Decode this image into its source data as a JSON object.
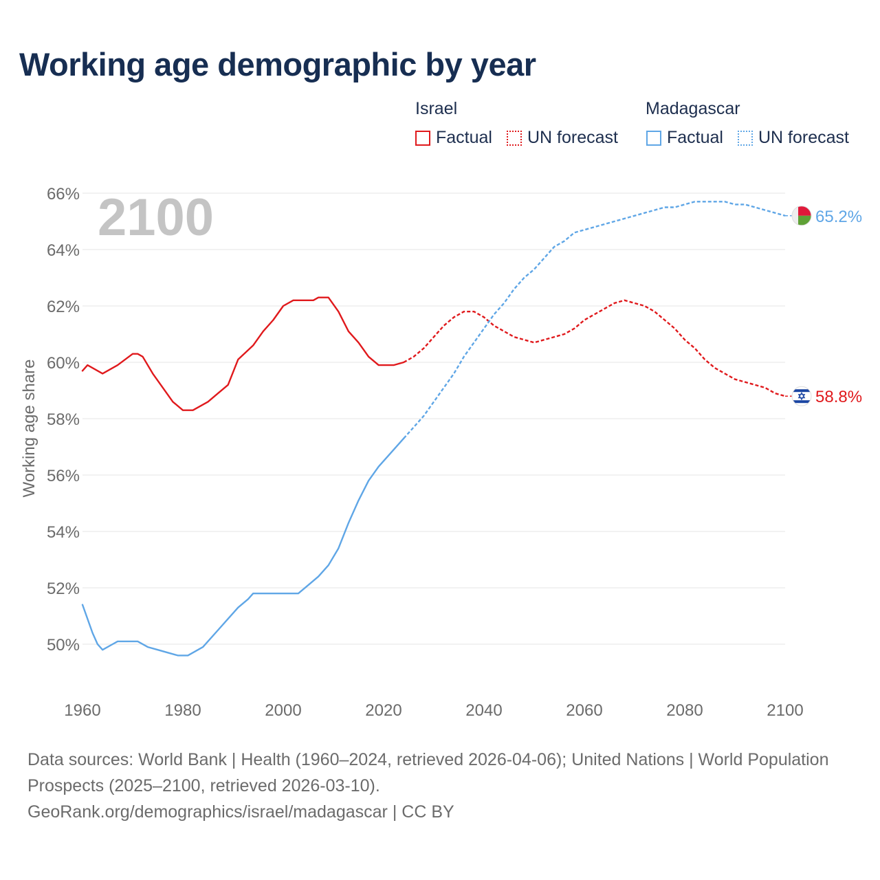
{
  "title": "Working age demographic by year",
  "legend": {
    "groups": [
      {
        "name": "Israel",
        "factual_label": "Factual",
        "forecast_label": "UN forecast",
        "color": "#e0191c"
      },
      {
        "name": "Madagascar",
        "factual_label": "Factual",
        "forecast_label": "UN forecast",
        "color": "#5fa6e6"
      }
    ]
  },
  "year_watermark": "2100",
  "footer": {
    "sources": "Data sources: World Bank | Health (1960–2024, retrieved 2026-04-06); United Nations | World Population Prospects (2025–2100, retrieved 2026-03-10).",
    "credit": "GeoRank.org/demographics/israel/madagascar | CC BY"
  },
  "chart_data": {
    "type": "line",
    "title": "Working age demographic by year",
    "xlabel": "",
    "ylabel": "Working age share",
    "xlim": [
      1960,
      2100
    ],
    "ylim": [
      48.4,
      66.4
    ],
    "x_ticks": [
      1960,
      1980,
      2000,
      2020,
      2040,
      2060,
      2080,
      2100
    ],
    "x_tick_labels": [
      "1960",
      "1980",
      "2000",
      "2020",
      "2040",
      "2060",
      "2080",
      "2100"
    ],
    "y_ticks": [
      50,
      52,
      54,
      56,
      58,
      60,
      62,
      64,
      66
    ],
    "y_tick_labels": [
      "50%",
      "52%",
      "54%",
      "56%",
      "58%",
      "60%",
      "62%",
      "64%",
      "66%"
    ],
    "grid": true,
    "factual_end_year": 2024,
    "series": [
      {
        "name": "Israel",
        "color": "#e0191c",
        "end_label": "58.8%",
        "flag": "israel-flag",
        "points": [
          [
            1960,
            59.7
          ],
          [
            1961,
            59.9
          ],
          [
            1964,
            59.6
          ],
          [
            1967,
            59.9
          ],
          [
            1970,
            60.3
          ],
          [
            1971,
            60.3
          ],
          [
            1972,
            60.2
          ],
          [
            1974,
            59.6
          ],
          [
            1976,
            59.1
          ],
          [
            1978,
            58.6
          ],
          [
            1980,
            58.3
          ],
          [
            1982,
            58.3
          ],
          [
            1985,
            58.6
          ],
          [
            1987,
            58.9
          ],
          [
            1989,
            59.2
          ],
          [
            1991,
            60.1
          ],
          [
            1994,
            60.6
          ],
          [
            1996,
            61.1
          ],
          [
            1998,
            61.5
          ],
          [
            2000,
            62.0
          ],
          [
            2002,
            62.2
          ],
          [
            2006,
            62.2
          ],
          [
            2007,
            62.3
          ],
          [
            2009,
            62.3
          ],
          [
            2011,
            61.8
          ],
          [
            2013,
            61.1
          ],
          [
            2015,
            60.7
          ],
          [
            2017,
            60.2
          ],
          [
            2019,
            59.9
          ],
          [
            2022,
            59.9
          ],
          [
            2024,
            60.0
          ],
          [
            2026,
            60.2
          ],
          [
            2028,
            60.5
          ],
          [
            2030,
            60.9
          ],
          [
            2032,
            61.3
          ],
          [
            2034,
            61.6
          ],
          [
            2036,
            61.8
          ],
          [
            2038,
            61.8
          ],
          [
            2040,
            61.6
          ],
          [
            2042,
            61.3
          ],
          [
            2044,
            61.1
          ],
          [
            2046,
            60.9
          ],
          [
            2048,
            60.8
          ],
          [
            2050,
            60.7
          ],
          [
            2052,
            60.8
          ],
          [
            2054,
            60.9
          ],
          [
            2056,
            61.0
          ],
          [
            2058,
            61.2
          ],
          [
            2060,
            61.5
          ],
          [
            2062,
            61.7
          ],
          [
            2064,
            61.9
          ],
          [
            2066,
            62.1
          ],
          [
            2068,
            62.2
          ],
          [
            2070,
            62.1
          ],
          [
            2072,
            62.0
          ],
          [
            2074,
            61.8
          ],
          [
            2076,
            61.5
          ],
          [
            2078,
            61.2
          ],
          [
            2080,
            60.8
          ],
          [
            2082,
            60.5
          ],
          [
            2084,
            60.1
          ],
          [
            2086,
            59.8
          ],
          [
            2088,
            59.6
          ],
          [
            2090,
            59.4
          ],
          [
            2092,
            59.3
          ],
          [
            2094,
            59.2
          ],
          [
            2096,
            59.1
          ],
          [
            2098,
            58.9
          ],
          [
            2100,
            58.8
          ]
        ]
      },
      {
        "name": "Madagascar",
        "color": "#5fa6e6",
        "end_label": "65.2%",
        "flag": "madagascar-flag",
        "points": [
          [
            1960,
            51.4
          ],
          [
            1961,
            50.9
          ],
          [
            1962,
            50.4
          ],
          [
            1963,
            50.0
          ],
          [
            1964,
            49.8
          ],
          [
            1966,
            50.0
          ],
          [
            1967,
            50.1
          ],
          [
            1971,
            50.1
          ],
          [
            1973,
            49.9
          ],
          [
            1975,
            49.8
          ],
          [
            1977,
            49.7
          ],
          [
            1979,
            49.6
          ],
          [
            1981,
            49.6
          ],
          [
            1984,
            49.9
          ],
          [
            1987,
            50.5
          ],
          [
            1989,
            50.9
          ],
          [
            1991,
            51.3
          ],
          [
            1993,
            51.6
          ],
          [
            1994,
            51.8
          ],
          [
            1997,
            51.8
          ],
          [
            2003,
            51.8
          ],
          [
            2005,
            52.1
          ],
          [
            2007,
            52.4
          ],
          [
            2009,
            52.8
          ],
          [
            2011,
            53.4
          ],
          [
            2013,
            54.3
          ],
          [
            2015,
            55.1
          ],
          [
            2017,
            55.8
          ],
          [
            2019,
            56.3
          ],
          [
            2021,
            56.7
          ],
          [
            2024,
            57.3
          ],
          [
            2026,
            57.7
          ],
          [
            2028,
            58.1
          ],
          [
            2030,
            58.6
          ],
          [
            2032,
            59.1
          ],
          [
            2034,
            59.6
          ],
          [
            2036,
            60.2
          ],
          [
            2038,
            60.7
          ],
          [
            2040,
            61.2
          ],
          [
            2042,
            61.7
          ],
          [
            2044,
            62.1
          ],
          [
            2046,
            62.6
          ],
          [
            2048,
            63.0
          ],
          [
            2050,
            63.3
          ],
          [
            2052,
            63.7
          ],
          [
            2054,
            64.1
          ],
          [
            2056,
            64.3
          ],
          [
            2058,
            64.6
          ],
          [
            2060,
            64.7
          ],
          [
            2062,
            64.8
          ],
          [
            2064,
            64.9
          ],
          [
            2066,
            65.0
          ],
          [
            2068,
            65.1
          ],
          [
            2070,
            65.2
          ],
          [
            2072,
            65.3
          ],
          [
            2074,
            65.4
          ],
          [
            2076,
            65.5
          ],
          [
            2078,
            65.5
          ],
          [
            2080,
            65.6
          ],
          [
            2082,
            65.7
          ],
          [
            2084,
            65.7
          ],
          [
            2086,
            65.7
          ],
          [
            2088,
            65.7
          ],
          [
            2090,
            65.6
          ],
          [
            2092,
            65.6
          ],
          [
            2094,
            65.5
          ],
          [
            2096,
            65.4
          ],
          [
            2098,
            65.3
          ],
          [
            2100,
            65.2
          ]
        ]
      }
    ]
  }
}
